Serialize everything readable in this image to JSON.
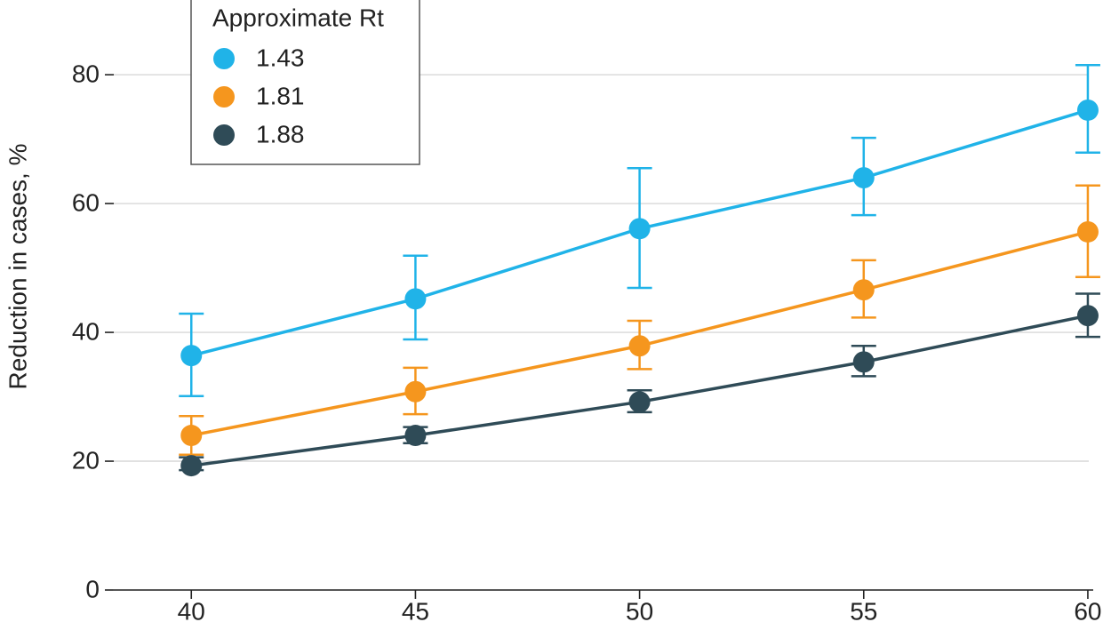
{
  "chart_data": {
    "type": "line",
    "y_label": "Reduction in cases, %",
    "legend_title": "Approximate Rt",
    "legend_position": "upper left",
    "x": [
      40,
      45,
      50,
      55,
      60
    ],
    "xlim": [
      38.27,
      60.12
    ],
    "xticks": [
      40,
      45,
      50,
      55,
      60
    ],
    "ylim": [
      0,
      91.6
    ],
    "yticks": [
      0,
      20,
      40,
      60,
      80
    ],
    "grid": true,
    "series": [
      {
        "name": "1.43",
        "color": "#20b3e8",
        "values": [
          36.4,
          45.2,
          56.1,
          64.0,
          74.5
        ],
        "lower": [
          30.1,
          38.9,
          46.9,
          58.2,
          67.9
        ],
        "upper": [
          42.9,
          51.9,
          65.5,
          70.2,
          81.5
        ]
      },
      {
        "name": "1.81",
        "color": "#f5961e",
        "values": [
          24.0,
          30.8,
          37.9,
          46.6,
          55.6
        ],
        "lower": [
          21.0,
          27.3,
          34.3,
          42.3,
          48.6
        ],
        "upper": [
          27.0,
          34.5,
          41.8,
          51.2,
          62.8
        ]
      },
      {
        "name": "1.88",
        "color": "#2f4b57",
        "values": [
          19.3,
          24.0,
          29.2,
          35.4,
          42.6
        ],
        "lower": [
          18.6,
          22.8,
          27.6,
          33.2,
          39.3
        ],
        "upper": [
          20.6,
          25.3,
          31.0,
          37.9,
          46.0
        ]
      }
    ]
  }
}
